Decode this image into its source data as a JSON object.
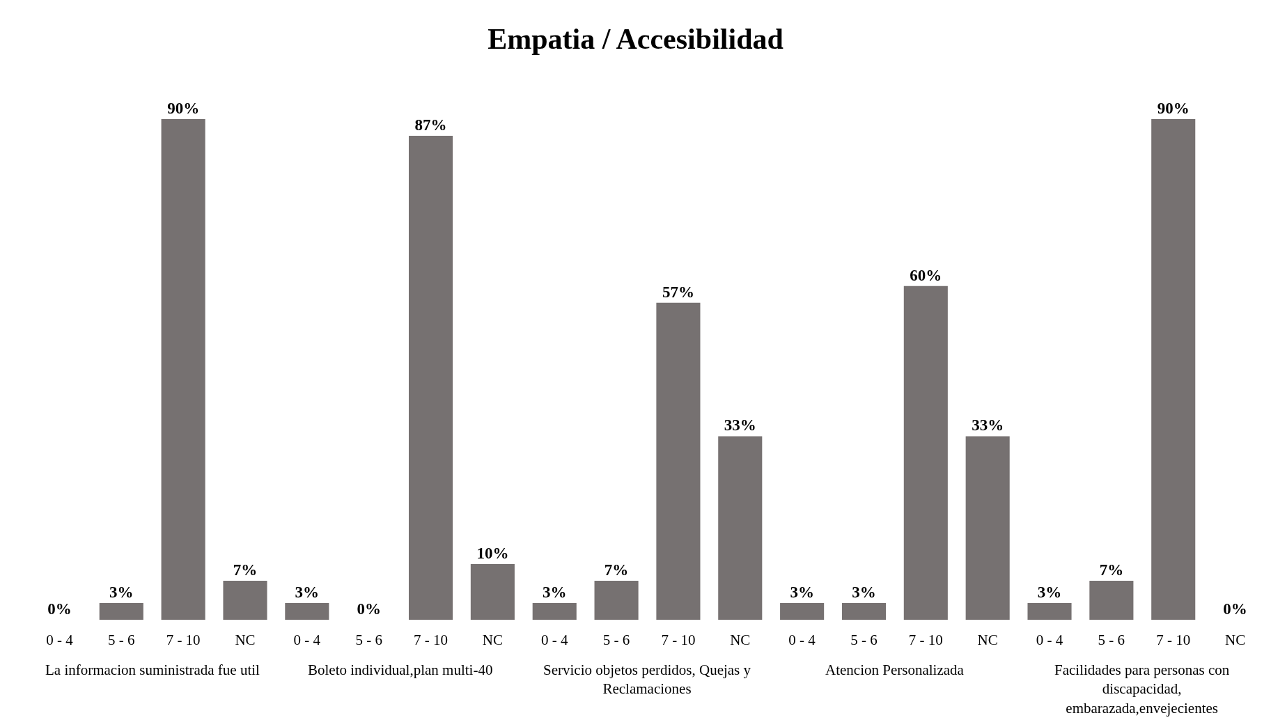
{
  "chart_data": {
    "type": "bar",
    "title": "Empatia / Accesibilidad",
    "categories": [
      "0 - 4",
      "5 - 6",
      "7 - 10",
      "NC",
      "0 - 4",
      "5 - 6",
      "7 - 10",
      "NC",
      "0 - 4",
      "5 - 6",
      "7 - 10",
      "NC",
      "0 - 4",
      "5 - 6",
      "7 - 10",
      "NC",
      "0 - 4",
      "5 - 6",
      "7 - 10",
      "NC"
    ],
    "values": [
      0,
      3,
      90,
      7,
      3,
      0,
      87,
      10,
      3,
      7,
      57,
      33,
      3,
      3,
      60,
      33,
      3,
      7,
      90,
      0
    ],
    "value_labels": [
      "0%",
      "3%",
      "90%",
      "7%",
      "3%",
      "0%",
      "87%",
      "10%",
      "3%",
      "7%",
      "57%",
      "33%",
      "3%",
      "3%",
      "60%",
      "33%",
      "3%",
      "7%",
      "90%",
      "0%"
    ],
    "color": "#767171",
    "annotations": [
      "La informacion suministrada fue util",
      "Boleto individual,plan multi-40",
      "Servicio objetos perdidos, Quejas y Reclamaciones",
      "Atencion Personalizada",
      "Facilidades para personas con discapacidad, embarazada,envejecientes"
    ]
  }
}
